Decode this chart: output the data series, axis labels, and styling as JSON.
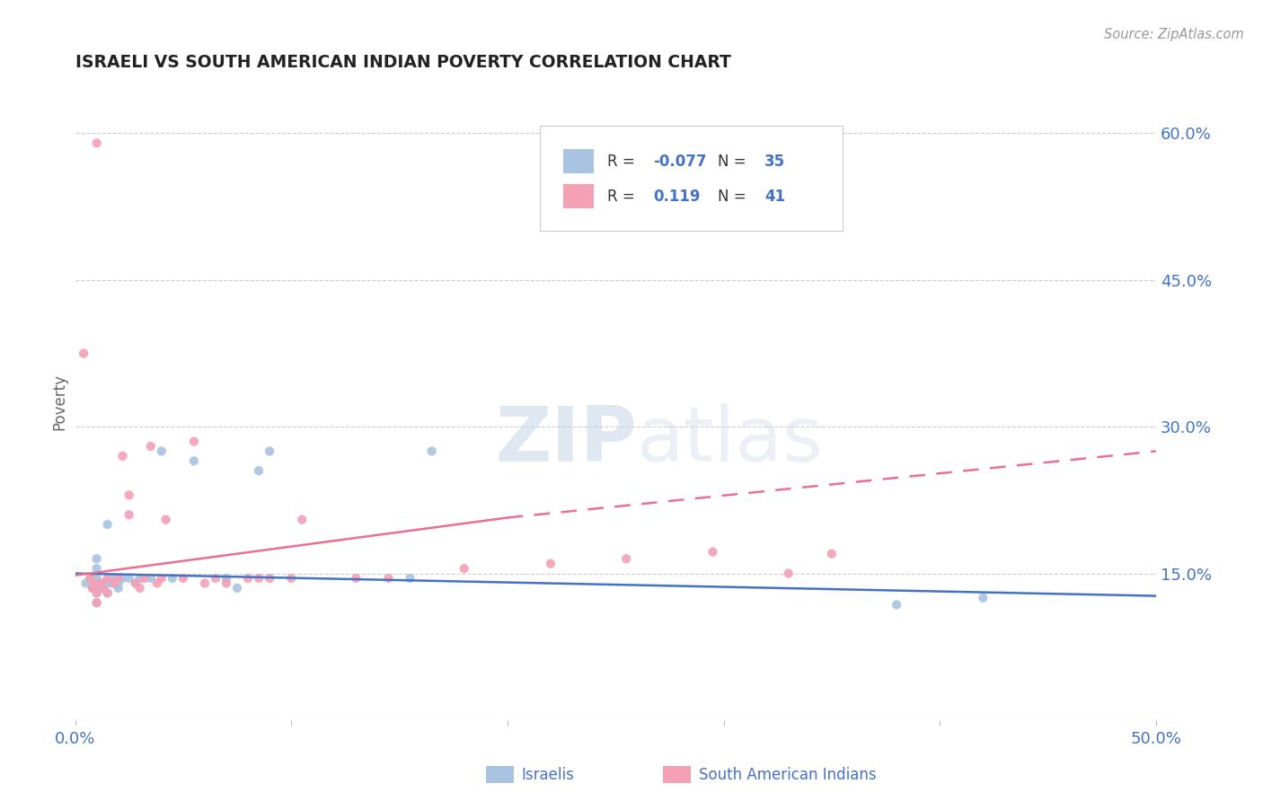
{
  "title": "ISRAELI VS SOUTH AMERICAN INDIAN POVERTY CORRELATION CHART",
  "source": "Source: ZipAtlas.com",
  "ylabel": "Poverty",
  "xmin": 0.0,
  "xmax": 0.5,
  "ymin": 0.0,
  "ymax": 0.65,
  "yticks": [
    0.15,
    0.3,
    0.45,
    0.6
  ],
  "ytick_labels": [
    "15.0%",
    "30.0%",
    "45.0%",
    "60.0%"
  ],
  "xticks": [
    0.0,
    0.1,
    0.2,
    0.3,
    0.4,
    0.5
  ],
  "xtick_labels": [
    "0.0%",
    "",
    "",
    "",
    "",
    "50.0%"
  ],
  "legend_R_blue": "-0.077",
  "legend_N_blue": "35",
  "legend_R_pink": "0.119",
  "legend_N_pink": "41",
  "legend_label_blue": "Israelis",
  "legend_label_pink": "South American Indians",
  "blue_dot_color": "#a8c4e0",
  "pink_dot_color": "#f4a0b5",
  "blue_line_color": "#4472c4",
  "pink_line_color": "#e87090",
  "watermark_zip": "ZIP",
  "watermark_atlas": "atlas",
  "israelis_x": [
    0.005,
    0.007,
    0.008,
    0.009,
    0.01,
    0.01,
    0.01,
    0.01,
    0.01,
    0.01,
    0.012,
    0.013,
    0.015,
    0.015,
    0.015,
    0.017,
    0.018,
    0.02,
    0.02,
    0.022,
    0.025,
    0.028,
    0.03,
    0.035,
    0.04,
    0.045,
    0.055,
    0.07,
    0.075,
    0.085,
    0.09,
    0.155,
    0.165,
    0.38,
    0.42
  ],
  "israelis_y": [
    0.14,
    0.145,
    0.135,
    0.14,
    0.12,
    0.13,
    0.135,
    0.145,
    0.155,
    0.165,
    0.135,
    0.14,
    0.13,
    0.14,
    0.2,
    0.14,
    0.145,
    0.135,
    0.14,
    0.145,
    0.145,
    0.14,
    0.145,
    0.145,
    0.275,
    0.145,
    0.265,
    0.145,
    0.135,
    0.255,
    0.275,
    0.145,
    0.275,
    0.118,
    0.125
  ],
  "sa_indians_x": [
    0.004,
    0.007,
    0.008,
    0.009,
    0.01,
    0.01,
    0.01,
    0.012,
    0.013,
    0.015,
    0.015,
    0.018,
    0.02,
    0.022,
    0.025,
    0.025,
    0.028,
    0.03,
    0.032,
    0.035,
    0.038,
    0.04,
    0.042,
    0.05,
    0.055,
    0.06,
    0.065,
    0.07,
    0.08,
    0.085,
    0.09,
    0.1,
    0.105,
    0.13,
    0.145,
    0.18,
    0.22,
    0.255,
    0.295,
    0.33,
    0.35
  ],
  "sa_indians_y": [
    0.375,
    0.145,
    0.135,
    0.14,
    0.12,
    0.13,
    0.59,
    0.14,
    0.135,
    0.13,
    0.145,
    0.14,
    0.145,
    0.27,
    0.21,
    0.23,
    0.14,
    0.135,
    0.145,
    0.28,
    0.14,
    0.145,
    0.205,
    0.145,
    0.285,
    0.14,
    0.145,
    0.14,
    0.145,
    0.145,
    0.145,
    0.145,
    0.205,
    0.145,
    0.145,
    0.155,
    0.16,
    0.165,
    0.172,
    0.15,
    0.17
  ],
  "blue_trend_x": [
    0.0,
    0.5
  ],
  "blue_trend_y": [
    0.15,
    0.127
  ],
  "pink_solid_trend_x": [
    0.0,
    0.2
  ],
  "pink_solid_trend_y": [
    0.148,
    0.207
  ],
  "pink_dash_trend_x": [
    0.2,
    0.5
  ],
  "pink_dash_trend_y": [
    0.207,
    0.275
  ],
  "background_color": "#ffffff",
  "grid_color": "#cccccc",
  "title_color": "#222222",
  "axis_label_color": "#666666",
  "tick_label_color": "#4472c4",
  "source_color": "#999999"
}
